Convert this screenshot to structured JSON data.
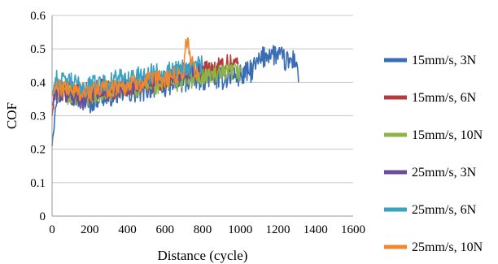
{
  "chart_data": {
    "type": "line",
    "title": "",
    "xlabel": "Distance (cycle)",
    "ylabel": "COF",
    "xlim": [
      0,
      1600
    ],
    "ylim": [
      0,
      0.6
    ],
    "x_ticks": [
      "0",
      "200",
      "400",
      "600",
      "800",
      "1000",
      "1200",
      "1400",
      "1600"
    ],
    "y_ticks": [
      "0",
      "0.1",
      "0.2",
      "0.3",
      "0.4",
      "0.5",
      "0.6"
    ],
    "grid": "horizontal",
    "legend_position": "right",
    "series": [
      {
        "name": "15mm/s, 3N",
        "color": "#3a6db3",
        "x": [
          0,
          20,
          50,
          100,
          150,
          200,
          250,
          300,
          350,
          400,
          450,
          500,
          550,
          600,
          650,
          700,
          750,
          800,
          850,
          900,
          950,
          1000,
          1050,
          1100,
          1150,
          1200,
          1250,
          1300,
          1310
        ],
        "y": [
          0.21,
          0.36,
          0.37,
          0.37,
          0.35,
          0.34,
          0.36,
          0.36,
          0.37,
          0.37,
          0.37,
          0.38,
          0.39,
          0.39,
          0.4,
          0.4,
          0.41,
          0.41,
          0.42,
          0.41,
          0.42,
          0.42,
          0.43,
          0.46,
          0.49,
          0.48,
          0.46,
          0.47,
          0.4
        ]
      },
      {
        "name": "15mm/s, 6N",
        "color": "#b23b3b",
        "x": [
          0,
          20,
          50,
          100,
          150,
          200,
          250,
          300,
          350,
          400,
          450,
          500,
          550,
          600,
          650,
          700,
          750,
          800,
          850,
          900,
          950,
          990
        ],
        "y": [
          0.3,
          0.4,
          0.38,
          0.38,
          0.37,
          0.37,
          0.38,
          0.38,
          0.38,
          0.39,
          0.39,
          0.4,
          0.4,
          0.41,
          0.42,
          0.43,
          0.43,
          0.44,
          0.44,
          0.45,
          0.46,
          0.46
        ]
      },
      {
        "name": "15mm/s, 10N",
        "color": "#8db446",
        "x": [
          0,
          20,
          50,
          100,
          150,
          200,
          250,
          300,
          350,
          400,
          450,
          500,
          550,
          600,
          650,
          700,
          750,
          800,
          850,
          900,
          950,
          1000
        ],
        "y": [
          0.33,
          0.37,
          0.37,
          0.36,
          0.36,
          0.36,
          0.37,
          0.37,
          0.38,
          0.38,
          0.38,
          0.39,
          0.39,
          0.4,
          0.4,
          0.41,
          0.41,
          0.42,
          0.42,
          0.42,
          0.43,
          0.43
        ]
      },
      {
        "name": "25mm/s, 3N",
        "color": "#6a4a9c",
        "x": [
          0,
          20,
          50,
          100,
          150,
          200,
          250,
          300,
          350,
          400,
          450,
          500,
          550,
          600,
          650,
          700,
          750,
          800
        ],
        "y": [
          0.33,
          0.37,
          0.36,
          0.36,
          0.35,
          0.36,
          0.37,
          0.37,
          0.38,
          0.39,
          0.39,
          0.4,
          0.41,
          0.41,
          0.42,
          0.43,
          0.44,
          0.44
        ]
      },
      {
        "name": "25mm/s, 6N",
        "color": "#3aa3c2",
        "x": [
          0,
          20,
          50,
          100,
          150,
          200,
          250,
          300,
          350,
          400,
          450,
          500,
          550,
          600,
          650,
          700,
          750,
          800
        ],
        "y": [
          0.36,
          0.41,
          0.4,
          0.4,
          0.39,
          0.39,
          0.4,
          0.4,
          0.41,
          0.41,
          0.42,
          0.42,
          0.43,
          0.43,
          0.44,
          0.44,
          0.45,
          0.45
        ]
      },
      {
        "name": "25mm/s, 10N",
        "color": "#f0872e",
        "x": [
          0,
          20,
          50,
          100,
          150,
          200,
          250,
          300,
          350,
          400,
          450,
          500,
          550,
          600,
          650,
          700,
          710,
          750,
          780
        ],
        "y": [
          0.36,
          0.38,
          0.38,
          0.38,
          0.37,
          0.37,
          0.38,
          0.38,
          0.39,
          0.39,
          0.4,
          0.4,
          0.41,
          0.41,
          0.42,
          0.43,
          0.54,
          0.44,
          0.43
        ]
      }
    ]
  }
}
